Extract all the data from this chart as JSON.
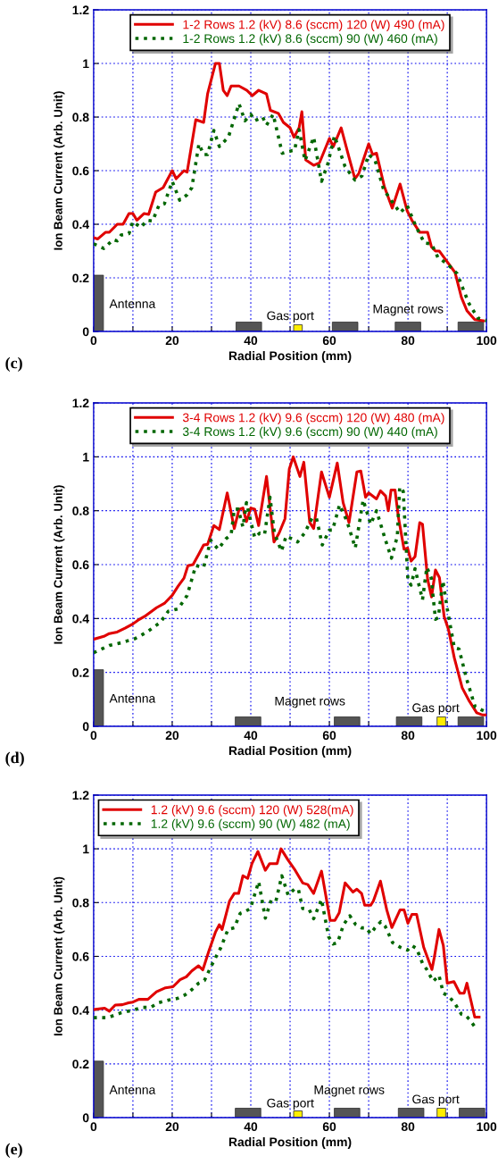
{
  "chart_data": [
    {
      "type": "line",
      "xlabel": "Radial Position (mm)",
      "ylabel": "Ion Beam Current (Arb. Unit)",
      "xlim": [
        0,
        100
      ],
      "ylim": [
        0,
        1.2
      ],
      "xticks": [
        0,
        {
          "value": 10,
          "label": null
        },
        20,
        {
          "value": 30,
          "label": null
        },
        40,
        {
          "value": 50,
          "label": null
        },
        60,
        {
          "value": 70,
          "label": null
        },
        80,
        {
          "value": 90,
          "label": null
        },
        100
      ],
      "yticks": [
        0,
        0.2,
        0.4,
        0.6,
        0.8,
        1,
        1.2
      ],
      "grid": true,
      "legend": "top",
      "marker": "none",
      "annotations": [
        "(c)",
        "Antenna",
        "Gas port",
        "Magnet rows"
      ],
      "series": [
        {
          "name": "1-2 Rows 1.2 (kV) 8.6 (sccm) 120 (W) 490 (mA)",
          "color": "#e00000",
          "line_style": "solid",
          "x": [
            0,
            1,
            3,
            4,
            6,
            7.5,
            9,
            10,
            11,
            12.8,
            14,
            15.8,
            17.7,
            20,
            21,
            23,
            23.8,
            26,
            28,
            29,
            31,
            32,
            33,
            34,
            35,
            37,
            39,
            40.4,
            42,
            44,
            45,
            47,
            48.3,
            50,
            51,
            52.3,
            53,
            54,
            56,
            57.5,
            60,
            61,
            63,
            65,
            66.5,
            67.5,
            70,
            71,
            72,
            74,
            76,
            78,
            79.8,
            81,
            83,
            85,
            86,
            87,
            88,
            90,
            92,
            93.6,
            95,
            97,
            99.2
          ],
          "values": [
            0.35,
            0.345,
            0.37,
            0.37,
            0.4,
            0.4,
            0.44,
            0.44,
            0.415,
            0.44,
            0.437,
            0.52,
            0.537,
            0.6,
            0.57,
            0.6,
            0.595,
            0.79,
            0.78,
            0.886,
            1.0,
            1.0,
            0.9,
            0.88,
            0.916,
            0.916,
            0.9,
            0.88,
            0.9,
            0.886,
            0.825,
            0.814,
            0.78,
            0.76,
            0.725,
            0.76,
            0.82,
            0.64,
            0.62,
            0.63,
            0.72,
            0.69,
            0.76,
            0.65,
            0.57,
            0.59,
            0.7,
            0.66,
            0.665,
            0.54,
            0.46,
            0.55,
            0.45,
            0.415,
            0.37,
            0.37,
            0.315,
            0.3,
            0.3,
            0.26,
            0.22,
            0.127,
            0.078,
            0.044,
            0.04
          ]
        },
        {
          "name": "1-2 Rows 1.2 (kV) 8.6 (sccm) 90 (W) 460 (mA)",
          "color": "#006600",
          "line_style": "dotted",
          "x": [
            0,
            2.6,
            5,
            6,
            7,
            9,
            10,
            12,
            13.6,
            15,
            16.6,
            18,
            20,
            21.9,
            23.8,
            25,
            26.8,
            28,
            29,
            30.6,
            32,
            34.3,
            37,
            38.5,
            40,
            41,
            43,
            44,
            45.7,
            48,
            50.6,
            51.1,
            52.3,
            53.8,
            56,
            58,
            59.6,
            61.3,
            64,
            66.5,
            68.3,
            70,
            71.6,
            73.8,
            75.7,
            78,
            79.8,
            82,
            84.2,
            86,
            87.6,
            90.2,
            92.5,
            94,
            95.5,
            97.8,
            100
          ],
          "values": [
            0.327,
            0.31,
            0.343,
            0.338,
            0.36,
            0.365,
            0.41,
            0.388,
            0.415,
            0.412,
            0.47,
            0.476,
            0.56,
            0.49,
            0.51,
            0.537,
            0.7,
            0.66,
            0.66,
            0.75,
            0.69,
            0.725,
            0.85,
            0.786,
            0.81,
            0.786,
            0.8,
            0.77,
            0.81,
            0.665,
            0.675,
            0.675,
            0.753,
            0.637,
            0.725,
            0.56,
            0.626,
            0.73,
            0.615,
            0.565,
            0.58,
            0.66,
            0.64,
            0.53,
            0.49,
            0.443,
            0.47,
            0.393,
            0.33,
            0.327,
            0.277,
            0.25,
            0.216,
            0.16,
            0.105,
            0.05,
            0.04
          ]
        },
        {
          "type": "bar",
          "color": "#555555",
          "x": [
            1.25
          ],
          "values": [
            0.21
          ]
        },
        {
          "type": "bar",
          "color": "#555555",
          "x": [
            39.5,
            64,
            80,
            96
          ],
          "values": [
            0.035,
            0.035,
            0.035,
            0.035
          ]
        },
        {
          "type": "bar",
          "color": "#ffee00",
          "x": [
            52
          ],
          "values": [
            0.025
          ]
        }
      ]
    },
    {
      "type": "line",
      "xlabel": "Radial Position (mm)",
      "ylabel": "Ion Beam Current (Arb. Unit)",
      "xlim": [
        0,
        100
      ],
      "ylim": [
        0,
        1.2
      ],
      "xticks": [
        0,
        {
          "value": 10,
          "label": null
        },
        20,
        {
          "value": 30,
          "label": null
        },
        40,
        {
          "value": 50,
          "label": null
        },
        60,
        {
          "value": 70,
          "label": null
        },
        80,
        {
          "value": 90,
          "label": null
        },
        100
      ],
      "yticks": [
        0,
        0.2,
        0.4,
        0.6,
        0.8,
        1,
        1.2
      ],
      "grid": true,
      "legend": "top",
      "marker": "none",
      "annotations": [
        "(d)",
        "Antenna",
        "Magnet rows",
        "Gas port"
      ],
      "series": [
        {
          "name": "3-4 Rows 1.2 (kV) 9.6 (sccm) 120 (W) 480 (mA)",
          "color": "#e00000",
          "line_style": "solid",
          "x": [
            0,
            2.6,
            4,
            6,
            8,
            10,
            11.3,
            13,
            16,
            18,
            20,
            21.5,
            23,
            24,
            25.3,
            26.8,
            28,
            29,
            30.6,
            32,
            34,
            35.8,
            37,
            38,
            38.9,
            40,
            41,
            42,
            44,
            45.9,
            47.2,
            48.7,
            49.8,
            50.8,
            52.5,
            53.5,
            55,
            56,
            58,
            60,
            62,
            63.5,
            65,
            67,
            68,
            69.2,
            70,
            72,
            73,
            74.3,
            75,
            75.7,
            76.7,
            77.6,
            79,
            79.9,
            80.8,
            81.8,
            83,
            83.7,
            85,
            86,
            87,
            88,
            89.2,
            90.3,
            91.8,
            93.8,
            95.6,
            97.5,
            99,
            100
          ],
          "values": [
            0.323,
            0.334,
            0.344,
            0.35,
            0.364,
            0.38,
            0.394,
            0.408,
            0.44,
            0.456,
            0.486,
            0.52,
            0.55,
            0.596,
            0.6,
            0.64,
            0.673,
            0.675,
            0.745,
            0.73,
            0.866,
            0.734,
            0.805,
            0.81,
            0.76,
            0.81,
            0.806,
            0.745,
            0.927,
            0.684,
            0.717,
            0.77,
            0.955,
            1.0,
            0.927,
            0.98,
            0.756,
            0.734,
            0.944,
            0.85,
            0.977,
            0.83,
            0.756,
            0.944,
            0.947,
            0.85,
            0.866,
            0.844,
            0.874,
            0.855,
            0.8,
            0.877,
            0.877,
            0.773,
            0.657,
            0.662,
            0.613,
            0.63,
            0.756,
            0.75,
            0.546,
            0.48,
            0.58,
            0.552,
            0.408,
            0.36,
            0.254,
            0.143,
            0.094,
            0.05,
            0.042,
            0.042
          ]
        },
        {
          "name": "3-4 Rows 1.2 (kV) 9.6 (sccm) 90 (W) 440 (mA)",
          "color": "#006600",
          "line_style": "dotted",
          "x": [
            0,
            4,
            7,
            10.6,
            13.6,
            17,
            19,
            21.5,
            23.8,
            26,
            28,
            29.8,
            31.7,
            33.6,
            35,
            35.8,
            36.8,
            38,
            38.9,
            40,
            41,
            42.3,
            43.5,
            44.9,
            46,
            47.8,
            49,
            50.6,
            51.9,
            53.7,
            55.6,
            56.7,
            58.2,
            60,
            60.8,
            62.6,
            64.5,
            66.6,
            68.6,
            70.5,
            72,
            74.3,
            75.8,
            77.3,
            77.9,
            78.8,
            80,
            80.8,
            81.8,
            83.7,
            84.8,
            85.9,
            87,
            87.7,
            88.9,
            90,
            91.8,
            93,
            94.9,
            97.1,
            99.6
          ],
          "values": [
            0.273,
            0.3,
            0.31,
            0.326,
            0.35,
            0.386,
            0.427,
            0.436,
            0.486,
            0.596,
            0.59,
            0.69,
            0.657,
            0.695,
            0.712,
            0.806,
            0.806,
            0.74,
            0.83,
            0.76,
            0.7,
            0.717,
            0.712,
            0.85,
            0.717,
            0.65,
            0.706,
            0.695,
            0.684,
            0.717,
            0.773,
            0.773,
            0.673,
            0.728,
            0.728,
            0.822,
            0.76,
            0.662,
            0.84,
            0.75,
            0.8,
            0.69,
            0.624,
            0.706,
            0.888,
            0.872,
            0.54,
            0.524,
            0.585,
            0.47,
            0.59,
            0.552,
            0.397,
            0.403,
            0.54,
            0.436,
            0.292,
            0.287,
            0.177,
            0.072,
            0.055
          ]
        },
        {
          "type": "bar",
          "color": "#555555",
          "x": [
            1.25
          ],
          "values": [
            0.21
          ]
        },
        {
          "type": "bar",
          "color": "#555555",
          "x": [
            39.3,
            64.5,
            80.3,
            96
          ],
          "values": [
            0.035,
            0.035,
            0.035,
            0.035
          ]
        },
        {
          "type": "bar",
          "color": "#ffee00",
          "x": [
            88.5
          ],
          "values": [
            0.035
          ]
        }
      ]
    },
    {
      "type": "line",
      "xlabel": "Radial Position (mm)",
      "ylabel": "Ion Beam Current (Arb. Unit)",
      "xlim": [
        0,
        100
      ],
      "ylim": [
        0,
        1.2
      ],
      "xticks": [
        0,
        {
          "value": 10,
          "label": null
        },
        20,
        {
          "value": 30,
          "label": null
        },
        40,
        {
          "value": 50,
          "label": null
        },
        60,
        {
          "value": 70,
          "label": null
        },
        80,
        {
          "value": 90,
          "label": null
        },
        100
      ],
      "yticks": [
        0,
        0.2,
        0.4,
        0.6,
        0.8,
        1,
        1.2
      ],
      "grid": true,
      "legend": "top left",
      "marker": "none",
      "annotations": [
        "(e)",
        "Antenna",
        "Gas port",
        "Magnet rows",
        "Gas port"
      ],
      "series": [
        {
          "name": "1.2 (kV) 9.6 (sccm) 120 (W) 528(mA)",
          "color": "#e00000",
          "line_style": "solid",
          "x": [
            0,
            2.8,
            4,
            5.5,
            7.3,
            8.9,
            10,
            11.5,
            13.8,
            16,
            18.3,
            20.2,
            22,
            23.6,
            25,
            26.7,
            27.8,
            29.3,
            31,
            32,
            32.7,
            34.6,
            35.8,
            36.9,
            38,
            39.2,
            40.3,
            41.8,
            43.7,
            44.8,
            46.7,
            47.7,
            49.4,
            51.3,
            53.2,
            54.5,
            56,
            58,
            60.2,
            61.4,
            62.5,
            64,
            66,
            67,
            68.2,
            69,
            70.5,
            71.2,
            73,
            74.6,
            75.9,
            78,
            79,
            80,
            81,
            82.2,
            84,
            86.1,
            86.7,
            87.9,
            89,
            90,
            91.7,
            93.2,
            94.3,
            95,
            97,
            98.1
          ],
          "values": [
            0.402,
            0.407,
            0.396,
            0.419,
            0.42,
            0.427,
            0.43,
            0.44,
            0.44,
            0.468,
            0.483,
            0.487,
            0.513,
            0.524,
            0.546,
            0.565,
            0.55,
            0.618,
            0.69,
            0.718,
            0.7,
            0.806,
            0.834,
            0.834,
            0.9,
            0.89,
            0.945,
            0.99,
            0.92,
            0.945,
            0.945,
            1.0,
            0.96,
            0.92,
            0.873,
            0.867,
            0.834,
            0.917,
            0.734,
            0.734,
            0.762,
            0.873,
            0.839,
            0.85,
            0.834,
            0.79,
            0.79,
            0.806,
            0.88,
            0.773,
            0.707,
            0.773,
            0.773,
            0.723,
            0.756,
            0.756,
            0.634,
            0.551,
            0.596,
            0.7,
            0.64,
            0.5,
            0.506,
            0.463,
            0.463,
            0.5,
            0.374,
            0.374
          ]
        },
        {
          "name": "1.2 (kV) 9.6 (sccm) 90 (W) 482 (mA)",
          "color": "#006600",
          "line_style": "dotted",
          "x": [
            0,
            3.6,
            7,
            10,
            12.3,
            14.5,
            16.4,
            19,
            21.4,
            23.3,
            25,
            26.7,
            28.2,
            29.7,
            31.2,
            32.3,
            34.2,
            35.8,
            37.3,
            38.6,
            39.9,
            42,
            43.7,
            45.2,
            46.4,
            47.9,
            49.5,
            51.1,
            52.1,
            53.2,
            54.9,
            56,
            58,
            59.8,
            61,
            62.1,
            63.6,
            65.2,
            66.7,
            68.2,
            69.3,
            70.5,
            71.6,
            73.1,
            74.2,
            76.1,
            78,
            79.9,
            81,
            82.2,
            83.7,
            84.8,
            86.4,
            87.9,
            89,
            90.3,
            91.7,
            93.6,
            94.7,
            95.8,
            97.3
          ],
          "values": [
            0.372,
            0.372,
            0.39,
            0.4,
            0.41,
            0.41,
            0.427,
            0.437,
            0.444,
            0.457,
            0.476,
            0.5,
            0.51,
            0.557,
            0.6,
            0.63,
            0.7,
            0.706,
            0.76,
            0.767,
            0.778,
            0.878,
            0.742,
            0.81,
            0.806,
            0.9,
            0.828,
            0.85,
            0.85,
            0.778,
            0.773,
            0.74,
            0.812,
            0.673,
            0.646,
            0.651,
            0.718,
            0.751,
            0.718,
            0.706,
            0.706,
            0.684,
            0.706,
            0.729,
            0.712,
            0.651,
            0.634,
            0.623,
            0.64,
            0.629,
            0.574,
            0.551,
            0.507,
            0.529,
            0.463,
            0.452,
            0.43,
            0.385,
            0.38,
            0.363,
            0.332
          ]
        },
        {
          "type": "bar",
          "color": "#555555",
          "x": [
            1.25
          ],
          "values": [
            0.21
          ]
        },
        {
          "type": "bar",
          "color": "#555555",
          "x": [
            39.3,
            64.5,
            80.8,
            96.3
          ],
          "values": [
            0.035,
            0.035,
            0.035,
            0.035
          ]
        },
        {
          "type": "bar",
          "color": "#ffee00",
          "x": [
            52,
            88.5
          ],
          "values": [
            0.025,
            0.035
          ]
        }
      ]
    }
  ]
}
